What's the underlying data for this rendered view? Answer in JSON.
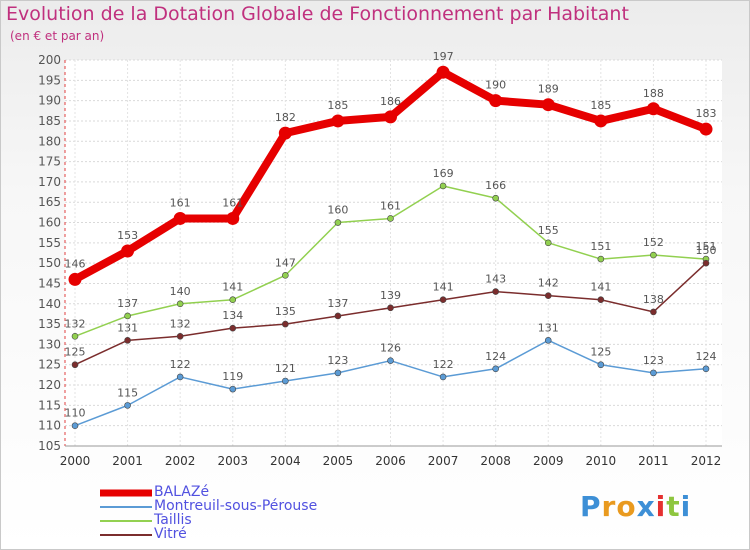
{
  "title": "Evolution de la Dotation Globale de Fonctionnement par Habitant",
  "subtitle": "(en € et par an)",
  "logo_text": "Proxiti",
  "chart_data": {
    "type": "line",
    "x": [
      "2000",
      "2001",
      "2002",
      "2003",
      "2004",
      "2005",
      "2006",
      "2007",
      "2008",
      "2009",
      "2010",
      "2011",
      "2012"
    ],
    "ylim": [
      105,
      200
    ],
    "yticks": [
      105,
      110,
      115,
      120,
      125,
      130,
      135,
      140,
      145,
      150,
      155,
      160,
      165,
      170,
      175,
      180,
      185,
      190,
      195,
      200
    ],
    "legend_position": "bottom-left",
    "series": [
      {
        "name": "BALAZé",
        "color": "#e60000",
        "values": [
          146,
          153,
          161,
          161,
          182,
          185,
          186,
          197,
          190,
          189,
          185,
          188,
          183
        ],
        "labels": [
          "146",
          "153",
          "161",
          "161",
          "182",
          "185",
          "186",
          "197",
          "190",
          "189",
          "185",
          "188",
          "183"
        ]
      },
      {
        "name": "Montreuil-sous-Pérouse",
        "color": "#5b9bd5",
        "values": [
          110,
          115,
          122,
          119,
          121,
          123,
          126,
          122,
          124,
          131,
          125,
          123,
          124
        ],
        "labels": [
          "110",
          "115",
          "122",
          "119",
          "121",
          "123",
          "126",
          "122",
          "124",
          "131",
          "125",
          "123",
          "124"
        ]
      },
      {
        "name": "Taillis",
        "color": "#92d050",
        "values": [
          132,
          137,
          140,
          141,
          147,
          160,
          161,
          169,
          166,
          155,
          151,
          152,
          151
        ],
        "labels": [
          "132",
          "137",
          "140",
          "141",
          "147",
          "160",
          "161",
          "169",
          "166",
          "155",
          "151",
          "152",
          "151"
        ]
      },
      {
        "name": "Vitré",
        "color": "#7b2d2d",
        "values": [
          125,
          131,
          132,
          134,
          135,
          137,
          139,
          141,
          143,
          142,
          141,
          138,
          150
        ],
        "labels": [
          "125",
          "131",
          "132",
          "134",
          "135",
          "137",
          "139",
          "141",
          "143",
          "142",
          "141",
          "138",
          "150"
        ]
      }
    ]
  }
}
